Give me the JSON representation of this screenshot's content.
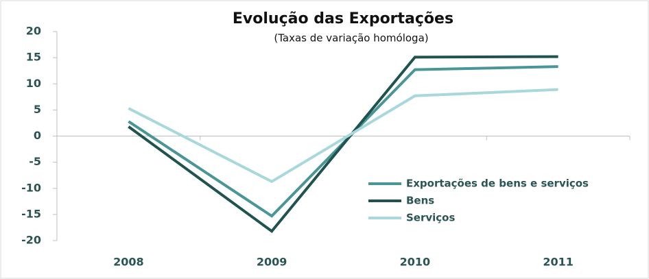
{
  "chart_data": {
    "type": "line",
    "title": "Evolução das Exportações",
    "subtitle": "(Taxas de variação homóloga)",
    "categories": [
      "2008",
      "2009",
      "2010",
      "2011"
    ],
    "series": [
      {
        "name": "Exportações de bens e serviços",
        "color": "#4a9595",
        "values": [
          2.8,
          -15.3,
          12.7,
          13.3
        ]
      },
      {
        "name": "Bens",
        "color": "#1f5350",
        "values": [
          1.8,
          -18.2,
          15.1,
          15.2
        ]
      },
      {
        "name": "Serviços",
        "color": "#a8d8dc",
        "values": [
          5.3,
          -8.7,
          7.7,
          8.9
        ]
      }
    ],
    "ylim": [
      -20,
      20
    ],
    "yticks": [
      -20,
      -15,
      -10,
      -5,
      0,
      5,
      10,
      15,
      20
    ],
    "grid": false,
    "legend": "lower right"
  }
}
